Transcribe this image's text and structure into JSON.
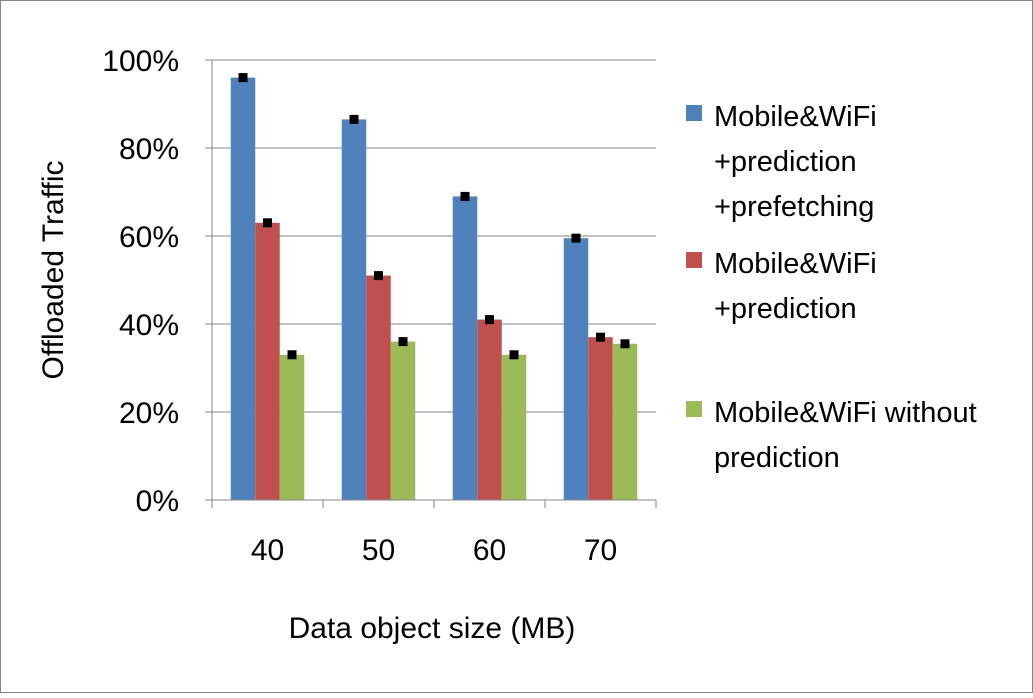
{
  "chart_data": {
    "type": "bar",
    "title": "",
    "xlabel": "Data object size (MB)",
    "ylabel": "Offloaded Traffic",
    "categories": [
      "40",
      "50",
      "60",
      "70"
    ],
    "ylim": [
      0,
      100
    ],
    "yticks": [
      "0%",
      "20%",
      "40%",
      "60%",
      "80%",
      "100%"
    ],
    "grid": true,
    "legend_position": "right",
    "error_markers": true,
    "series": [
      {
        "name": "Mobile&WiFi\n+prediction\n+prefetching",
        "color": "#4f81bd",
        "values": [
          96,
          86.5,
          69,
          59.5
        ]
      },
      {
        "name": "Mobile&WiFi\n+prediction",
        "color": "#c0504d",
        "values": [
          63,
          51,
          41,
          37
        ]
      },
      {
        "name": "Mobile&WiFi without\nprediction",
        "color": "#9bbb59",
        "values": [
          33,
          36,
          33,
          35.5
        ]
      }
    ]
  }
}
